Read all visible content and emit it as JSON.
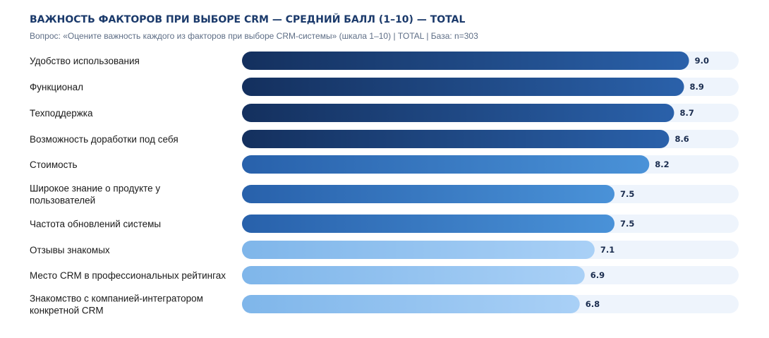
{
  "chart_data": {
    "type": "bar",
    "orientation": "horizontal",
    "title": "ВАЖНОСТЬ ФАКТОРОВ ПРИ ВЫБОРЕ CRM — СРЕДНИЙ БАЛЛ (1–10) — TOTAL",
    "subtitle": "Вопрос: «Оцените важность каждого из факторов при выборе CRM-системы» (шкала 1–10) | TOTAL | База: n=303",
    "categories": [
      [
        "Удобство использования"
      ],
      [
        "Функционал"
      ],
      [
        "Техподдержка"
      ],
      [
        "Возможность доработки под себя"
      ],
      [
        "Стоимость"
      ],
      [
        "Широкое знание о продукте у",
        "пользователей"
      ],
      [
        "Частота обновлений системы"
      ],
      [
        "Отзывы знакомых"
      ],
      [
        "Место CRM в профессиональных рейтингах"
      ],
      [
        "Знакомство с компанией-интегратором",
        "конкретной CRM"
      ]
    ],
    "values": [
      9.0,
      8.9,
      8.7,
      8.6,
      8.2,
      7.5,
      7.5,
      7.1,
      6.9,
      6.8
    ],
    "value_labels": [
      "9.0",
      "8.9",
      "8.7",
      "8.6",
      "8.2",
      "7.5",
      "7.5",
      "7.1",
      "6.9",
      "6.8"
    ],
    "tiers": [
      "dark",
      "dark",
      "dark",
      "dark",
      "mid",
      "mid",
      "mid",
      "light",
      "light",
      "light"
    ],
    "xlim": [
      0,
      10
    ],
    "grid": false,
    "legend": false
  },
  "colors": {
    "title": "#1b3a6b",
    "track": "#eef4fc",
    "dark": [
      "#14305e",
      "#2a61aa"
    ],
    "mid": [
      "#2861ab",
      "#4a92d8"
    ],
    "light": [
      "#7fb6ea",
      "#a9d0f6"
    ]
  }
}
